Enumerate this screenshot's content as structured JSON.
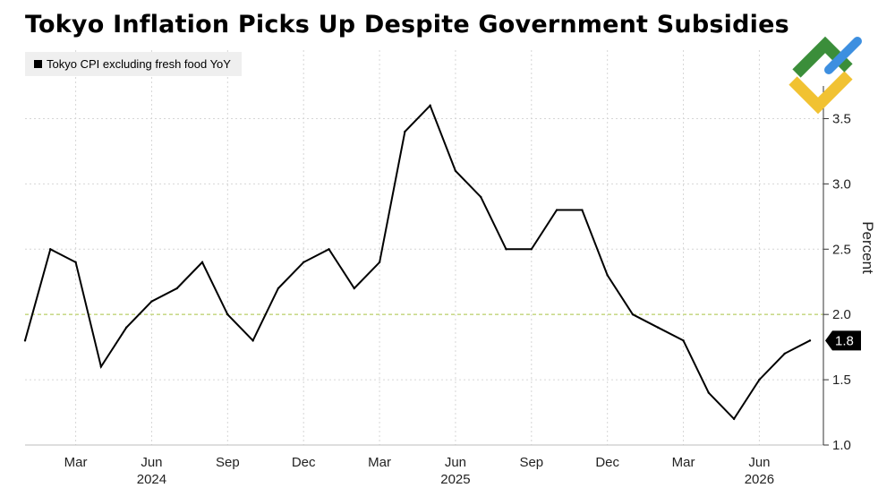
{
  "title": "Tokyo Inflation Picks Up Despite Government Subsidies",
  "logo": {
    "name": "brand-logo",
    "colors": [
      "#3b8e3a",
      "#f1c232",
      "#3d8fe0"
    ]
  },
  "chart_data": {
    "type": "line",
    "title": "Tokyo Inflation Picks Up Despite Government Subsidies",
    "xlabel": "",
    "ylabel": "Percent",
    "ylim": [
      1.0,
      3.75
    ],
    "yticks": [
      1.0,
      1.5,
      2.0,
      2.5,
      3.0,
      3.5
    ],
    "ytick_labels": [
      "1.0",
      "1.5",
      "2.0",
      "2.5",
      "3.0",
      "3.5"
    ],
    "xlim": [
      "2024-01",
      "2026-08"
    ],
    "xtick_months": [
      "2024-03",
      "2024-06",
      "2024-09",
      "2024-12",
      "2025-03",
      "2025-06",
      "2025-09",
      "2025-12",
      "2026-03",
      "2026-06"
    ],
    "xtick_labels": [
      "Mar",
      "Jun",
      "Sep",
      "Dec",
      "Mar",
      "Jun",
      "Sep",
      "Dec",
      "Mar",
      "Jun"
    ],
    "year_labels": [
      {
        "month": "2024-06",
        "label": "2024"
      },
      {
        "month": "2025-06",
        "label": "2025"
      },
      {
        "month": "2026-06",
        "label": "2026"
      }
    ],
    "grid": true,
    "reference_line": {
      "y": 2.0,
      "color": "#c9d98a",
      "style": "dashed"
    },
    "legend_position": "top-left",
    "last_value_label": "1.8",
    "series": [
      {
        "name": "Tokyo CPI excluding fresh food YoY",
        "color": "#000000",
        "points": [
          [
            "2024-01",
            1.8
          ],
          [
            "2024-02",
            2.5
          ],
          [
            "2024-03",
            2.4
          ],
          [
            "2024-04",
            1.6
          ],
          [
            "2024-05",
            1.9
          ],
          [
            "2024-06",
            2.1
          ],
          [
            "2024-07",
            2.2
          ],
          [
            "2024-08",
            2.4
          ],
          [
            "2024-09",
            2.0
          ],
          [
            "2024-10",
            1.8
          ],
          [
            "2024-11",
            2.2
          ],
          [
            "2024-12",
            2.4
          ],
          [
            "2025-01",
            2.5
          ],
          [
            "2025-02",
            2.2
          ],
          [
            "2025-03",
            2.4
          ],
          [
            "2025-04",
            3.4
          ],
          [
            "2025-05",
            3.6
          ],
          [
            "2025-06",
            3.1
          ],
          [
            "2025-07",
            2.9
          ],
          [
            "2025-08",
            2.5
          ],
          [
            "2025-09",
            2.5
          ],
          [
            "2025-10",
            2.8
          ],
          [
            "2025-11",
            2.8
          ],
          [
            "2025-12",
            2.3
          ],
          [
            "2026-01",
            2.0
          ],
          [
            "2026-02",
            1.9
          ],
          [
            "2026-03",
            1.8
          ],
          [
            "2026-04",
            1.4
          ],
          [
            "2026-05",
            1.2
          ],
          [
            "2026-06",
            1.5
          ],
          [
            "2026-07",
            1.7
          ],
          [
            "2026-08",
            1.8
          ]
        ]
      }
    ]
  }
}
